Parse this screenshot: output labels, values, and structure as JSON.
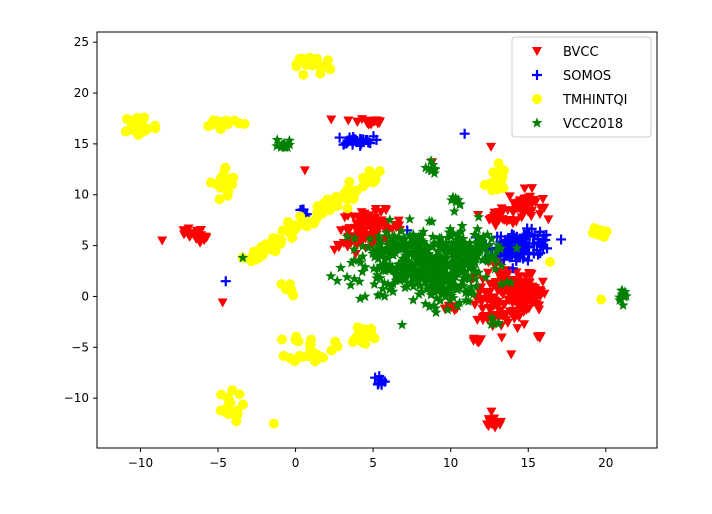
{
  "chart_data": {
    "type": "scatter",
    "title": "",
    "xlabel": "",
    "ylabel": "",
    "xlim": [
      -12.8,
      23.3
    ],
    "ylim": [
      -14.9,
      26.0
    ],
    "xticks": [
      -10,
      -5,
      0,
      5,
      10,
      15,
      20
    ],
    "yticks": [
      -10,
      -5,
      0,
      5,
      10,
      15,
      20,
      25
    ],
    "grid": false,
    "legend_position": "top-right",
    "series": [
      {
        "name": "BVCC",
        "marker": "triangle-down",
        "color": "#ff0000",
        "clusters": [
          {
            "cx": 13.6,
            "cy": 0.0,
            "rx": 1.8,
            "ry": 2.8,
            "n": 140
          },
          {
            "cx": 15.3,
            "cy": 0.3,
            "rx": 0.8,
            "ry": 1.4,
            "n": 40
          },
          {
            "cx": 14.8,
            "cy": 9.0,
            "rx": 1.0,
            "ry": 1.3,
            "n": 40
          },
          {
            "cx": 13.2,
            "cy": 7.9,
            "rx": 0.9,
            "ry": 0.8,
            "n": 25
          },
          {
            "cx": 4.9,
            "cy": 6.8,
            "rx": 1.8,
            "ry": 1.4,
            "n": 80
          },
          {
            "cx": 3.6,
            "cy": 5.3,
            "rx": 1.0,
            "ry": 0.7,
            "n": 20
          },
          {
            "cx": 4.9,
            "cy": 17.2,
            "rx": 0.8,
            "ry": 0.5,
            "n": 16
          },
          {
            "cx": 12.8,
            "cy": -12.4,
            "rx": 0.7,
            "ry": 0.6,
            "n": 16
          },
          {
            "cx": -6.8,
            "cy": 6.1,
            "rx": 0.8,
            "ry": 0.5,
            "n": 16
          },
          {
            "cx": -6.0,
            "cy": 5.6,
            "rx": 0.3,
            "ry": 0.4,
            "n": 8
          },
          {
            "cx": 11.8,
            "cy": -4.4,
            "rx": 0.4,
            "ry": 0.3,
            "n": 6
          },
          {
            "cx": 15.6,
            "cy": -4.0,
            "rx": 0.3,
            "ry": 0.4,
            "n": 5
          },
          {
            "cx": 12.3,
            "cy": -2.5,
            "rx": 0.5,
            "ry": 0.5,
            "n": 6
          },
          {
            "cx": 10.2,
            "cy": -1.0,
            "rx": 0.4,
            "ry": 0.4,
            "n": 6
          }
        ],
        "singles": [
          [
            -8.6,
            5.5
          ],
          [
            -4.7,
            -0.6
          ],
          [
            0.6,
            12.4
          ],
          [
            2.3,
            17.4
          ],
          [
            12.6,
            14.7
          ],
          [
            13.9,
            -5.7
          ],
          [
            3.4,
            17.3
          ],
          [
            8.8,
            13.2
          ]
        ]
      },
      {
        "name": "SOMOS",
        "marker": "plus",
        "color": "#0000ff",
        "clusters": [
          {
            "cx": 14.6,
            "cy": 5.2,
            "rx": 1.9,
            "ry": 1.1,
            "n": 100
          },
          {
            "cx": 13.8,
            "cy": 4.0,
            "rx": 0.9,
            "ry": 0.5,
            "n": 20
          },
          {
            "cx": 3.8,
            "cy": 15.3,
            "rx": 1.1,
            "ry": 0.4,
            "n": 28
          },
          {
            "cx": 5.4,
            "cy": -8.3,
            "rx": 0.5,
            "ry": 0.6,
            "n": 10
          },
          {
            "cx": 0.4,
            "cy": 8.0,
            "rx": 0.4,
            "ry": 0.6,
            "n": 8
          }
        ],
        "singles": [
          [
            10.9,
            16.0
          ],
          [
            -4.5,
            1.5
          ],
          [
            7.2,
            6.5
          ]
        ]
      },
      {
        "name": "TMHINTQI",
        "marker": "circle",
        "color": "#ffff00",
        "clusters": [
          {
            "cx": 1.2,
            "cy": 22.8,
            "rx": 1.0,
            "ry": 0.9,
            "n": 22
          },
          {
            "cx": -10.0,
            "cy": 16.8,
            "rx": 1.0,
            "ry": 1.1,
            "n": 28
          },
          {
            "cx": -4.7,
            "cy": 17.1,
            "rx": 1.2,
            "ry": 0.4,
            "n": 20
          },
          {
            "cx": -4.5,
            "cy": 11.0,
            "rx": 0.6,
            "ry": 1.6,
            "n": 24
          },
          {
            "cx": 12.9,
            "cy": 11.5,
            "rx": 0.6,
            "ry": 1.6,
            "n": 18
          },
          {
            "cx": 1.0,
            "cy": -5.0,
            "rx": 1.3,
            "ry": 1.3,
            "n": 26
          },
          {
            "cx": 4.3,
            "cy": -3.9,
            "rx": 1.0,
            "ry": 1.2,
            "n": 20
          },
          {
            "cx": -4.4,
            "cy": -10.9,
            "rx": 0.9,
            "ry": 1.3,
            "n": 18
          },
          {
            "cx": 19.4,
            "cy": 6.2,
            "rx": 0.5,
            "ry": 0.9,
            "n": 10
          },
          {
            "cx": -0.5,
            "cy": 0.7,
            "rx": 0.6,
            "ry": 0.6,
            "n": 8
          }
        ],
        "band": {
          "from": [
            -3.2,
            3.3
          ],
          "to": [
            5.3,
            12.2
          ],
          "width": 0.9,
          "n": 90
        },
        "singles": [
          [
            0.5,
            21.8
          ],
          [
            -1.4,
            -12.5
          ],
          [
            16.4,
            3.4
          ],
          [
            19.7,
            -0.3
          ],
          [
            -3.4,
            3.8
          ]
        ]
      },
      {
        "name": "VCC2018",
        "marker": "star",
        "color": "#008000",
        "clusters": [
          {
            "cx": 8.5,
            "cy": 3.2,
            "rx": 3.6,
            "ry": 2.9,
            "n": 420
          },
          {
            "cx": 6.2,
            "cy": 4.8,
            "rx": 1.6,
            "ry": 0.9,
            "n": 50
          },
          {
            "cx": 11.2,
            "cy": 4.6,
            "rx": 1.4,
            "ry": 1.4,
            "n": 50
          },
          {
            "cx": 10.0,
            "cy": 0.5,
            "rx": 1.5,
            "ry": 1.0,
            "n": 40
          },
          {
            "cx": -0.8,
            "cy": 14.9,
            "rx": 0.5,
            "ry": 0.6,
            "n": 12
          },
          {
            "cx": 8.9,
            "cy": 12.5,
            "rx": 0.4,
            "ry": 0.7,
            "n": 10
          },
          {
            "cx": 10.4,
            "cy": 9.2,
            "rx": 0.3,
            "ry": 0.6,
            "n": 8
          },
          {
            "cx": 20.9,
            "cy": -0.1,
            "rx": 0.5,
            "ry": 0.6,
            "n": 12
          },
          {
            "cx": 12.9,
            "cy": -2.7,
            "rx": 0.3,
            "ry": 0.4,
            "n": 5
          }
        ],
        "singles": [
          [
            -3.4,
            3.8
          ],
          [
            11.8,
            7.8
          ],
          [
            3.8,
            5.7
          ]
        ]
      }
    ]
  }
}
